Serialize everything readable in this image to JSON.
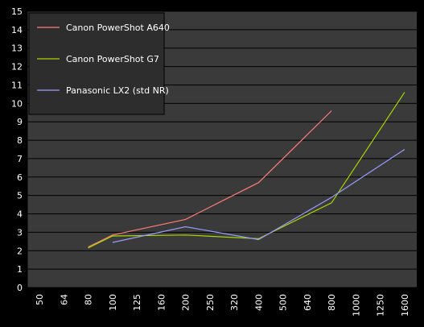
{
  "chart_data": {
    "type": "line",
    "categories": [
      "50",
      "64",
      "80",
      "100",
      "125",
      "160",
      "200",
      "250",
      "320",
      "400",
      "500",
      "640",
      "800",
      "1000",
      "1250",
      "1600"
    ],
    "ylim": [
      0,
      15
    ],
    "yticks": [
      0,
      1,
      2,
      3,
      4,
      5,
      6,
      7,
      8,
      9,
      10,
      11,
      12,
      13,
      14,
      15
    ],
    "grid": true,
    "legend_placement": "top-left",
    "title": "",
    "xlabel": "",
    "ylabel": "",
    "series": [
      {
        "name": "Canon PowerShot A640",
        "color": "#ff7b7b",
        "values": [
          null,
          null,
          2.2,
          2.85,
          null,
          null,
          3.7,
          null,
          null,
          5.7,
          null,
          null,
          9.6,
          null,
          null,
          null
        ]
      },
      {
        "name": "Canon PowerShot G7",
        "color": "#a8d500",
        "values": [
          null,
          null,
          2.15,
          2.8,
          null,
          null,
          2.85,
          null,
          null,
          2.65,
          null,
          null,
          4.6,
          null,
          null,
          10.6
        ]
      },
      {
        "name": "Panasonic LX2 (std NR)",
        "color": "#9a9aff",
        "values": [
          null,
          null,
          null,
          2.45,
          null,
          null,
          3.3,
          null,
          null,
          2.6,
          null,
          null,
          4.9,
          null,
          null,
          7.5
        ]
      }
    ],
    "colors": {
      "background": "#000000",
      "plot_area": "#3a3a3a",
      "gridline": "#000000",
      "legend_bg": "#2d2d2d",
      "text": "#ffffff"
    }
  }
}
